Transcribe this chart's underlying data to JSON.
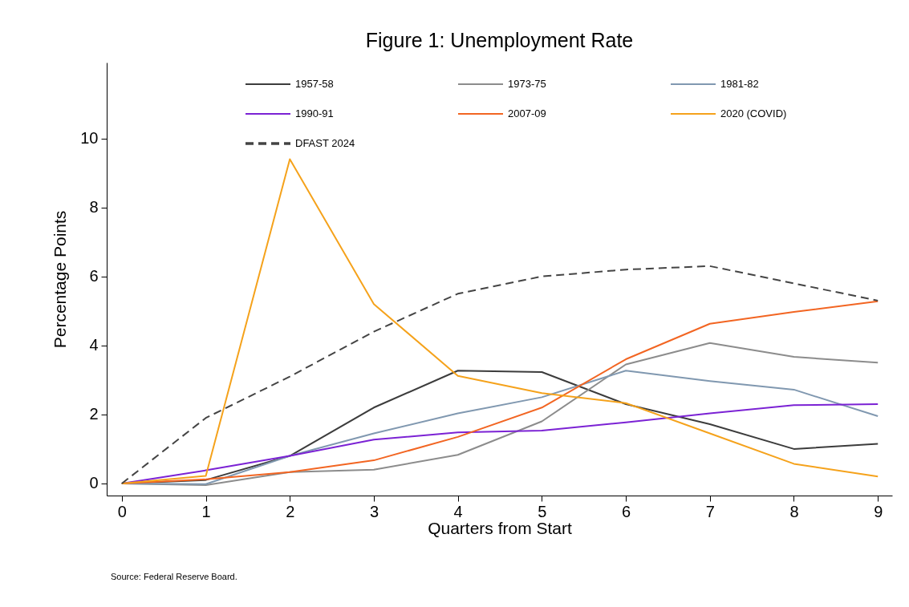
{
  "chart_data": {
    "type": "line",
    "title": "Figure 1: Unemployment Rate",
    "xlabel": "Quarters from Start",
    "ylabel": "Percentage Points",
    "x": [
      0,
      1,
      2,
      3,
      4,
      5,
      6,
      7,
      8,
      9
    ],
    "xlim": [
      -0.18,
      9.17
    ],
    "xticks": [
      0,
      1,
      2,
      3,
      4,
      5,
      6,
      7,
      8,
      9
    ],
    "ylim": [
      -0.35,
      12.2
    ],
    "yticks": [
      0,
      2,
      4,
      6,
      8,
      10
    ],
    "grid": false,
    "legend": "top",
    "marker": "none",
    "series": [
      {
        "name": "1957-58",
        "color": "#3c3c3c",
        "values": [
          0,
          0.1,
          0.8,
          2.2,
          3.27,
          3.23,
          2.3,
          1.72,
          1.0,
          1.15
        ]
      },
      {
        "name": "1973-75",
        "color": "#8c8c8c",
        "values": [
          0,
          -0.05,
          0.33,
          0.4,
          0.83,
          1.8,
          3.45,
          4.07,
          3.67,
          3.5
        ]
      },
      {
        "name": "1981-82",
        "color": "#8098b0",
        "values": [
          0,
          -0.02,
          0.8,
          1.45,
          2.03,
          2.5,
          3.27,
          2.97,
          2.72,
          1.95
        ]
      },
      {
        "name": "1990-91",
        "color": "#7b22d4",
        "values": [
          0,
          0.38,
          0.8,
          1.27,
          1.48,
          1.53,
          1.77,
          2.03,
          2.27,
          2.3
        ]
      },
      {
        "name": "2007-09",
        "color": "#f26522",
        "values": [
          0,
          0.12,
          0.33,
          0.67,
          1.35,
          2.2,
          3.6,
          4.63,
          4.97,
          5.28
        ]
      },
      {
        "name": "2020 (COVID)",
        "color": "#f5a21b",
        "values": [
          0,
          0.22,
          9.4,
          5.2,
          3.12,
          2.62,
          2.33,
          1.45,
          0.57,
          0.2
        ]
      },
      {
        "name": "DFAST 2024",
        "color": "#444444",
        "line_style": "dashed",
        "values": [
          0,
          1.9,
          3.1,
          4.4,
          5.5,
          6.0,
          6.2,
          6.3,
          5.8,
          5.3
        ]
      }
    ],
    "annotations": [
      "Source: Federal Reserve Board."
    ]
  }
}
